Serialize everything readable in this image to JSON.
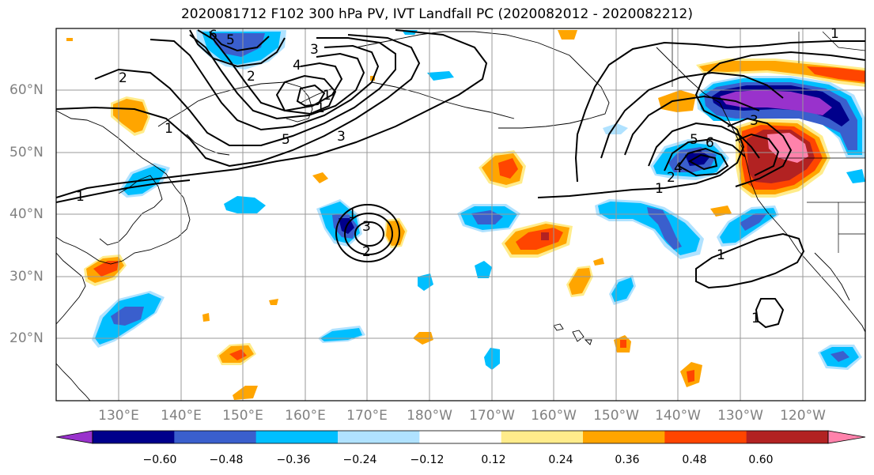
{
  "title": "2020081712 F102 300 hPa PV, IVT Landfall PC (2020082012 - 2020082212)",
  "lat_labels": [
    "60°N",
    "50°N",
    "40°N",
    "30°N",
    "20°N"
  ],
  "lon_labels": [
    "130°E",
    "140°E",
    "150°E",
    "160°E",
    "170°E",
    "180°W",
    "170°W",
    "160°W",
    "150°W",
    "140°W",
    "130°W",
    "120°W"
  ],
  "colorbar": {
    "colors": [
      "#9932cc",
      "#00008b",
      "#3a5fcd",
      "#00bfff",
      "#b0e2ff",
      "#ffffff",
      "#ffec8b",
      "#ffa500",
      "#ff4500",
      "#b22222",
      "#ff82ab"
    ],
    "tick_labels": [
      "−0.60",
      "−0.48",
      "−0.36",
      "−0.24",
      "−0.12",
      "0.12",
      "0.24",
      "0.36",
      "0.48",
      "0.60"
    ]
  },
  "contour_labels": [
    "6",
    "5",
    "4",
    "3",
    "2",
    "1",
    "3",
    "5",
    "2",
    "1",
    "1",
    "1",
    "3",
    "2",
    "1",
    "1",
    "5",
    "6",
    "4",
    "3",
    "2",
    "1",
    "1",
    "1"
  ]
}
